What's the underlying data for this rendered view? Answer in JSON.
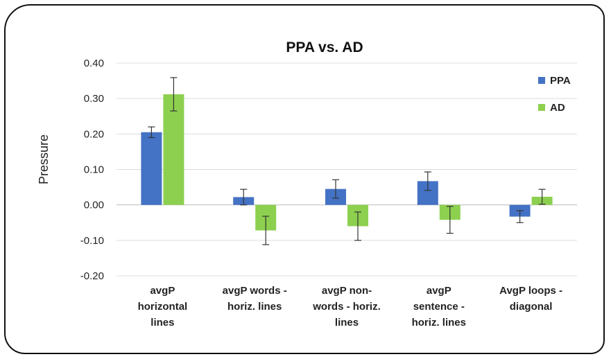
{
  "chart_data": {
    "type": "bar",
    "title": "PPA vs. AD",
    "xlabel": "",
    "ylabel": "Pressure",
    "ylim": [
      -0.2,
      0.4
    ],
    "yticks": [
      "0.40",
      "0.30",
      "0.20",
      "0.10",
      "0.00",
      "-0.10",
      "-0.20"
    ],
    "ytick_values": [
      0.4,
      0.3,
      0.2,
      0.1,
      0.0,
      -0.1,
      -0.2
    ],
    "grid": true,
    "legend_position": "top-right",
    "categories": [
      [
        "avgP",
        "horizontal",
        "lines"
      ],
      [
        "avgP words -",
        "horiz. lines"
      ],
      [
        "avgP non-",
        "words - horiz.",
        "lines"
      ],
      [
        "avgP",
        "sentence -",
        "horiz. lines"
      ],
      [
        "AvgP loops -",
        "diagonal"
      ]
    ],
    "series": [
      {
        "name": "PPA",
        "color": "#4472c4",
        "values": [
          0.205,
          0.022,
          0.045,
          0.067,
          -0.033
        ],
        "errors": [
          0.015,
          0.022,
          0.026,
          0.026,
          0.017
        ]
      },
      {
        "name": "AD",
        "color": "#8dd04f",
        "values": [
          0.312,
          -0.072,
          -0.06,
          -0.042,
          0.023
        ],
        "errors": [
          0.047,
          0.04,
          0.04,
          0.038,
          0.021
        ]
      }
    ]
  }
}
